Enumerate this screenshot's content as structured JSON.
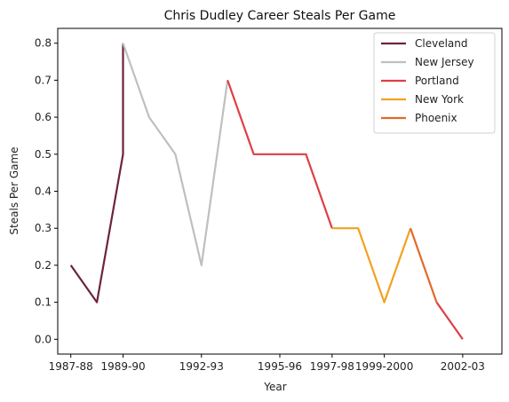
{
  "chart_data": {
    "type": "line",
    "title": "Chris Dudley Career Steals Per Game",
    "xlabel": "Year",
    "ylabel": "Steals Per Game",
    "xlim": [
      1986.5,
      2003.5
    ],
    "ylim": [
      -0.04,
      0.84
    ],
    "x_ticks": [
      {
        "value": 1987,
        "label": "1987-88"
      },
      {
        "value": 1989,
        "label": "1989-90"
      },
      {
        "value": 1992,
        "label": "1992-93"
      },
      {
        "value": 1995,
        "label": "1995-96"
      },
      {
        "value": 1997,
        "label": "1997-98"
      },
      {
        "value": 1999,
        "label": "1999-2000"
      },
      {
        "value": 2002,
        "label": "2002-03"
      }
    ],
    "y_ticks": [
      0.0,
      0.1,
      0.2,
      0.3,
      0.4,
      0.5,
      0.6,
      0.7,
      0.8
    ],
    "legend_position": "top-right",
    "grid": false,
    "series": [
      {
        "name": "Cleveland",
        "color": "#6b2340",
        "x": [
          1987,
          1988,
          1989,
          1989
        ],
        "y": [
          0.2,
          0.1,
          0.5,
          0.8
        ]
      },
      {
        "name": "New Jersey",
        "color": "#bfbfbf",
        "x": [
          1989,
          1990,
          1991,
          1992,
          1993
        ],
        "y": [
          0.8,
          0.6,
          0.5,
          0.2,
          0.7
        ]
      },
      {
        "name": "Portland",
        "color": "#de3f45",
        "x": [
          1993,
          1994,
          1995,
          1996,
          1997
        ],
        "y": [
          0.7,
          0.5,
          0.5,
          0.5,
          0.3
        ]
      },
      {
        "name": "New York",
        "color": "#f4a021",
        "x": [
          1997,
          1998,
          1999,
          2000
        ],
        "y": [
          0.3,
          0.3,
          0.1,
          0.3
        ]
      },
      {
        "name": "Phoenix",
        "color": "#e16a2a",
        "x": [
          2000,
          2001
        ],
        "y": [
          0.3,
          0.1
        ]
      },
      {
        "name": "",
        "color": "#de3f45",
        "x": [
          2001,
          2002
        ],
        "y": [
          0.1,
          0.0
        ]
      }
    ]
  }
}
